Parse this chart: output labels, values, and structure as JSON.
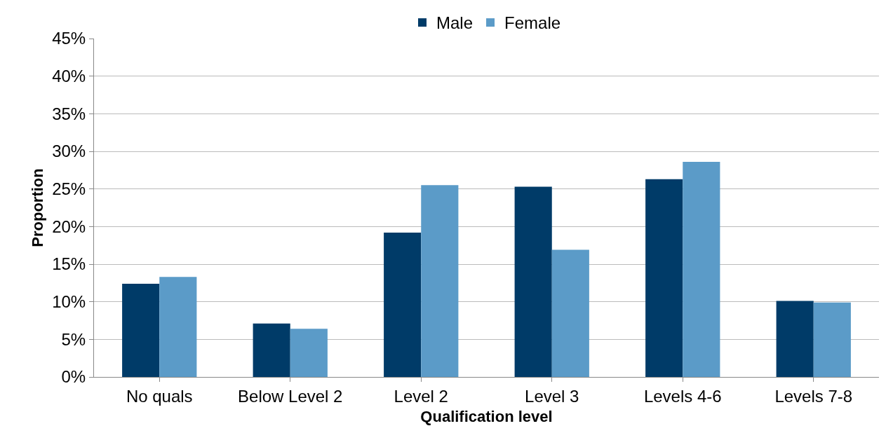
{
  "chart_data": {
    "type": "bar",
    "xlabel": "Qualification level",
    "ylabel": "Proportion",
    "categories": [
      "No quals",
      "Below Level 2",
      "Level 2",
      "Level 3",
      "Levels 4-6",
      "Levels 7-8"
    ],
    "series": [
      {
        "name": "Male",
        "color": "#003b68",
        "values": [
          12.4,
          7.1,
          19.2,
          25.3,
          26.3,
          10.1
        ]
      },
      {
        "name": "Female",
        "color": "#5b9bc8",
        "values": [
          13.3,
          6.4,
          25.5,
          16.9,
          28.6,
          9.9
        ]
      }
    ],
    "ylim": [
      0,
      45
    ],
    "yticks": [
      {
        "value": 0,
        "label": "0%"
      },
      {
        "value": 5,
        "label": "5%"
      },
      {
        "value": 10,
        "label": "10%"
      },
      {
        "value": 15,
        "label": "15%"
      },
      {
        "value": 20,
        "label": "20%"
      },
      {
        "value": 25,
        "label": "25%"
      },
      {
        "value": 30,
        "label": "30%"
      },
      {
        "value": 35,
        "label": "35%"
      },
      {
        "value": 40,
        "label": "40%"
      },
      {
        "value": 45,
        "label": "45%"
      }
    ],
    "grid": "y",
    "legend": "top"
  }
}
